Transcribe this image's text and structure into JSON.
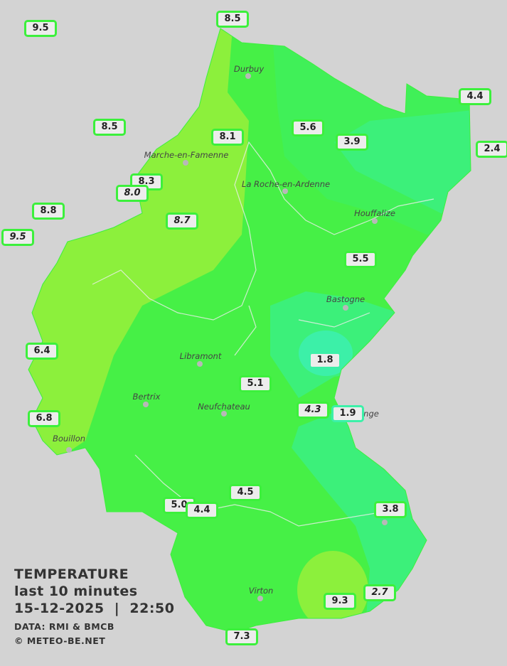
{
  "title": "TEMPERATURE",
  "subtitle": "last 10 minutes",
  "datetime": "15-12-2025  |  22:50",
  "source": "DATA: RMI & BMCB",
  "copyright": "© METEO-BE.NET",
  "colors": {
    "background": "#d3d3d3",
    "warm": "#8cf03c",
    "mid": "#46f046",
    "cool": "#3cf07a",
    "cold": "#3cf0a0",
    "coldest": "#3cf0c8",
    "border": "#3cf03c"
  },
  "cities": [
    {
      "name": "Durbuy"
    },
    {
      "name": "Marche-en-Famenne"
    },
    {
      "name": "La Roche-en-Ardenne"
    },
    {
      "name": "Houffalize"
    },
    {
      "name": "Bastogne"
    },
    {
      "name": "Libramont"
    },
    {
      "name": "Bertrix"
    },
    {
      "name": "Neufchateau"
    },
    {
      "name": "nge"
    },
    {
      "name": "Bouillon"
    },
    {
      "name": "Virton"
    }
  ],
  "stations": [
    {
      "value": "9.5"
    },
    {
      "value": "8.5"
    },
    {
      "value": "8.5"
    },
    {
      "value": "4.4"
    },
    {
      "value": "8.1"
    },
    {
      "value": "5.6"
    },
    {
      "value": "3.9"
    },
    {
      "value": "2.4"
    },
    {
      "value": "8.3"
    },
    {
      "value": "8.0"
    },
    {
      "value": "8.8"
    },
    {
      "value": "9.5"
    },
    {
      "value": "8.7"
    },
    {
      "value": "5.5"
    },
    {
      "value": "6.4"
    },
    {
      "value": "1.8"
    },
    {
      "value": "5.1"
    },
    {
      "value": "4.3"
    },
    {
      "value": "1.9"
    },
    {
      "value": "6.8"
    },
    {
      "value": "4.5"
    },
    {
      "value": "5.0"
    },
    {
      "value": "4.4"
    },
    {
      "value": "3.8"
    },
    {
      "value": "9.3"
    },
    {
      "value": "2.7"
    },
    {
      "value": "7.3"
    }
  ]
}
